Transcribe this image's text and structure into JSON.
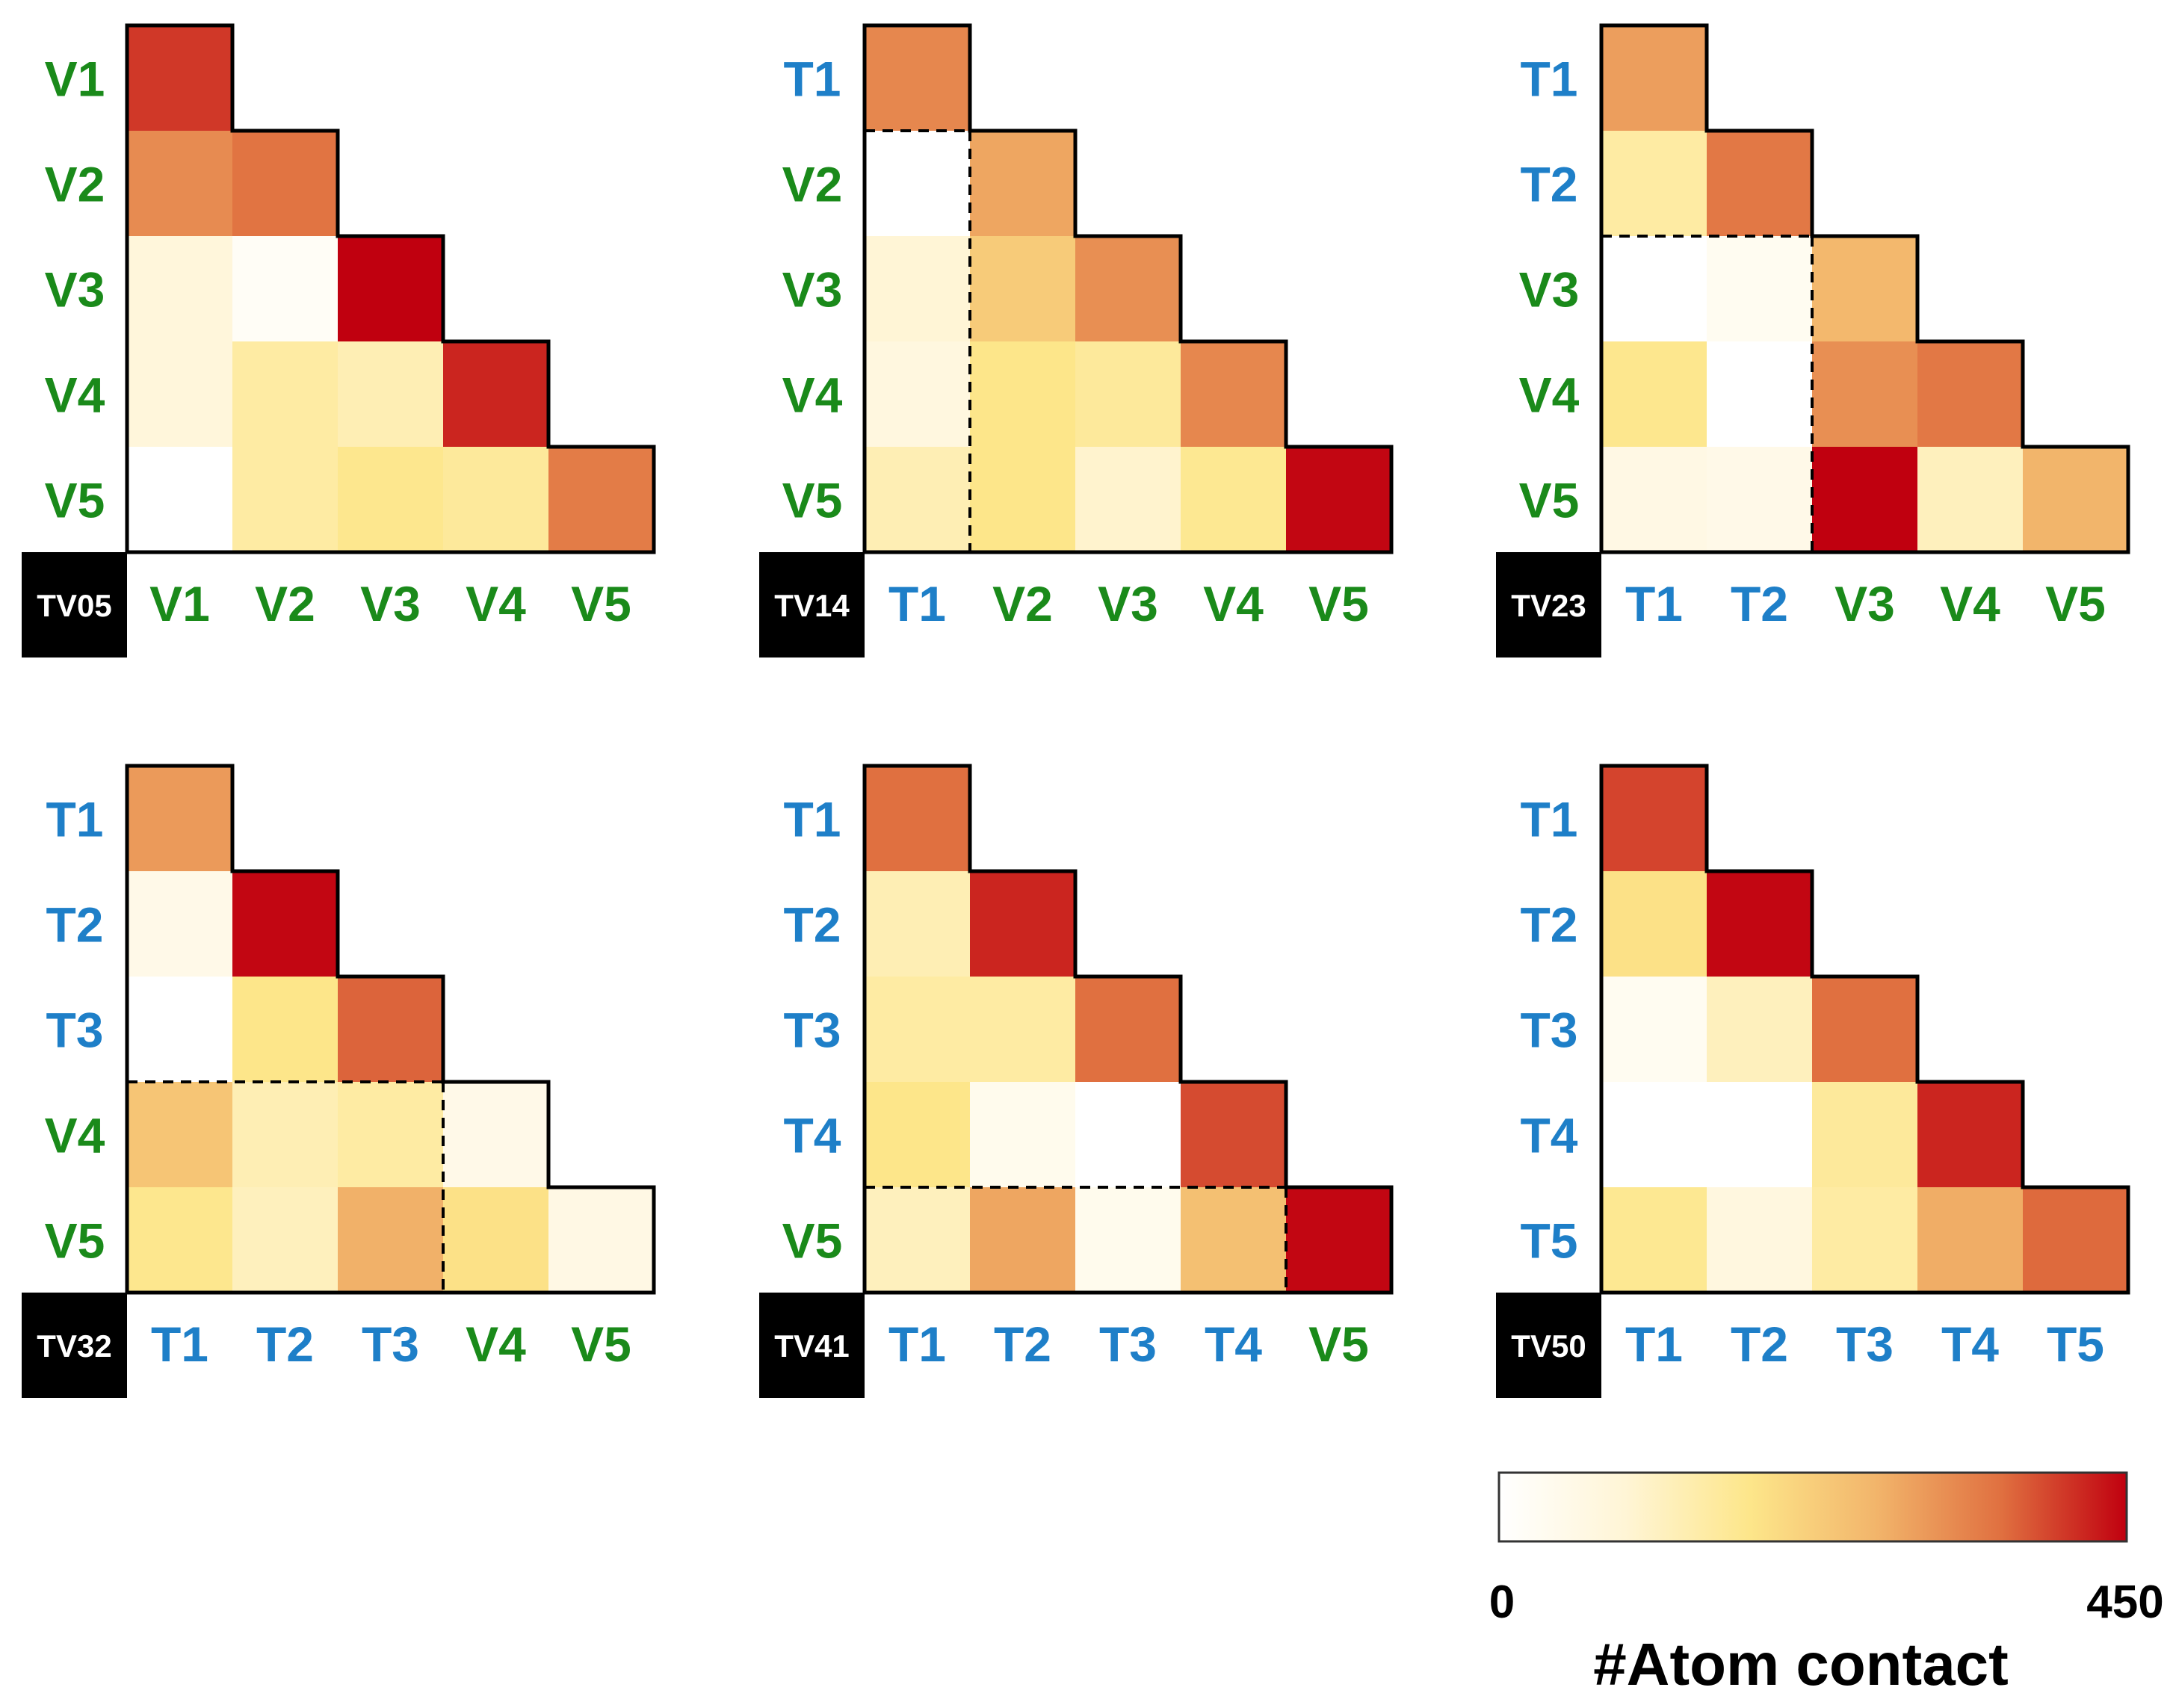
{
  "colors": {
    "v_label": "#1a8a1a",
    "t_label": "#1e7fc8",
    "colormap": [
      "#ffffff",
      "#fff5d6",
      "#fde68a",
      "#f2b56b",
      "#e07040",
      "#c0000f"
    ]
  },
  "chart_data": [
    {
      "type": "heatmap",
      "title": "TV05",
      "labels": [
        "V1",
        "V2",
        "V3",
        "V4",
        "V5"
      ],
      "groups": [
        "V",
        "V",
        "V",
        "V",
        "V"
      ],
      "split_index": null,
      "values": [
        [
          405
        ],
        [
          325,
          355
        ],
        [
          80,
          20,
          450
        ],
        [
          80,
          150,
          130,
          420
        ],
        [
          0,
          150,
          175,
          160,
          345
        ]
      ]
    },
    {
      "type": "heatmap",
      "title": "TV14",
      "labels": [
        "T1",
        "V2",
        "V3",
        "V4",
        "V5"
      ],
      "groups": [
        "T",
        "V",
        "V",
        "V",
        "V"
      ],
      "split_index": 1,
      "values": [
        [
          330
        ],
        [
          0,
          290
        ],
        [
          90,
          230,
          320
        ],
        [
          70,
          180,
          160,
          330
        ],
        [
          130,
          180,
          100,
          170,
          445
        ]
      ]
    },
    {
      "type": "heatmap",
      "title": "TV23",
      "labels": [
        "T1",
        "T2",
        "V3",
        "V4",
        "V5"
      ],
      "groups": [
        "T",
        "T",
        "V",
        "V",
        "V"
      ],
      "split_index": 2,
      "values": [
        [
          300
        ],
        [
          150,
          350
        ],
        [
          0,
          30,
          265
        ],
        [
          175,
          0,
          320,
          350
        ],
        [
          60,
          50,
          450,
          120,
          270
        ]
      ]
    },
    {
      "type": "heatmap",
      "title": "TV32",
      "labels": [
        "T1",
        "T2",
        "T3",
        "V4",
        "V5"
      ],
      "groups": [
        "T",
        "T",
        "T",
        "V",
        "V"
      ],
      "split_index": 3,
      "values": [
        [
          305
        ],
        [
          50,
          445
        ],
        [
          0,
          180,
          370
        ],
        [
          240,
          130,
          150,
          50
        ],
        [
          175,
          120,
          275,
          190,
          60
        ]
      ]
    },
    {
      "type": "heatmap",
      "title": "TV41",
      "labels": [
        "T1",
        "T2",
        "T3",
        "T4",
        "V5"
      ],
      "groups": [
        "T",
        "T",
        "T",
        "T",
        "V"
      ],
      "split_index": 4,
      "values": [
        [
          360
        ],
        [
          130,
          420
        ],
        [
          150,
          150,
          360
        ],
        [
          180,
          40,
          0,
          390
        ],
        [
          120,
          290,
          40,
          250,
          445
        ]
      ]
    },
    {
      "type": "heatmap",
      "title": "TV50",
      "labels": [
        "T1",
        "T2",
        "T3",
        "T4",
        "T5"
      ],
      "groups": [
        "T",
        "T",
        "T",
        "T",
        "T"
      ],
      "split_index": null,
      "values": [
        [
          395
        ],
        [
          190,
          445
        ],
        [
          30,
          120,
          360
        ],
        [
          0,
          0,
          160,
          420
        ],
        [
          170,
          70,
          150,
          280,
          365
        ]
      ]
    }
  ],
  "legend": {
    "title": "#Atom contact",
    "min_label": "0",
    "max_label": "450",
    "min": 0,
    "max": 450
  }
}
